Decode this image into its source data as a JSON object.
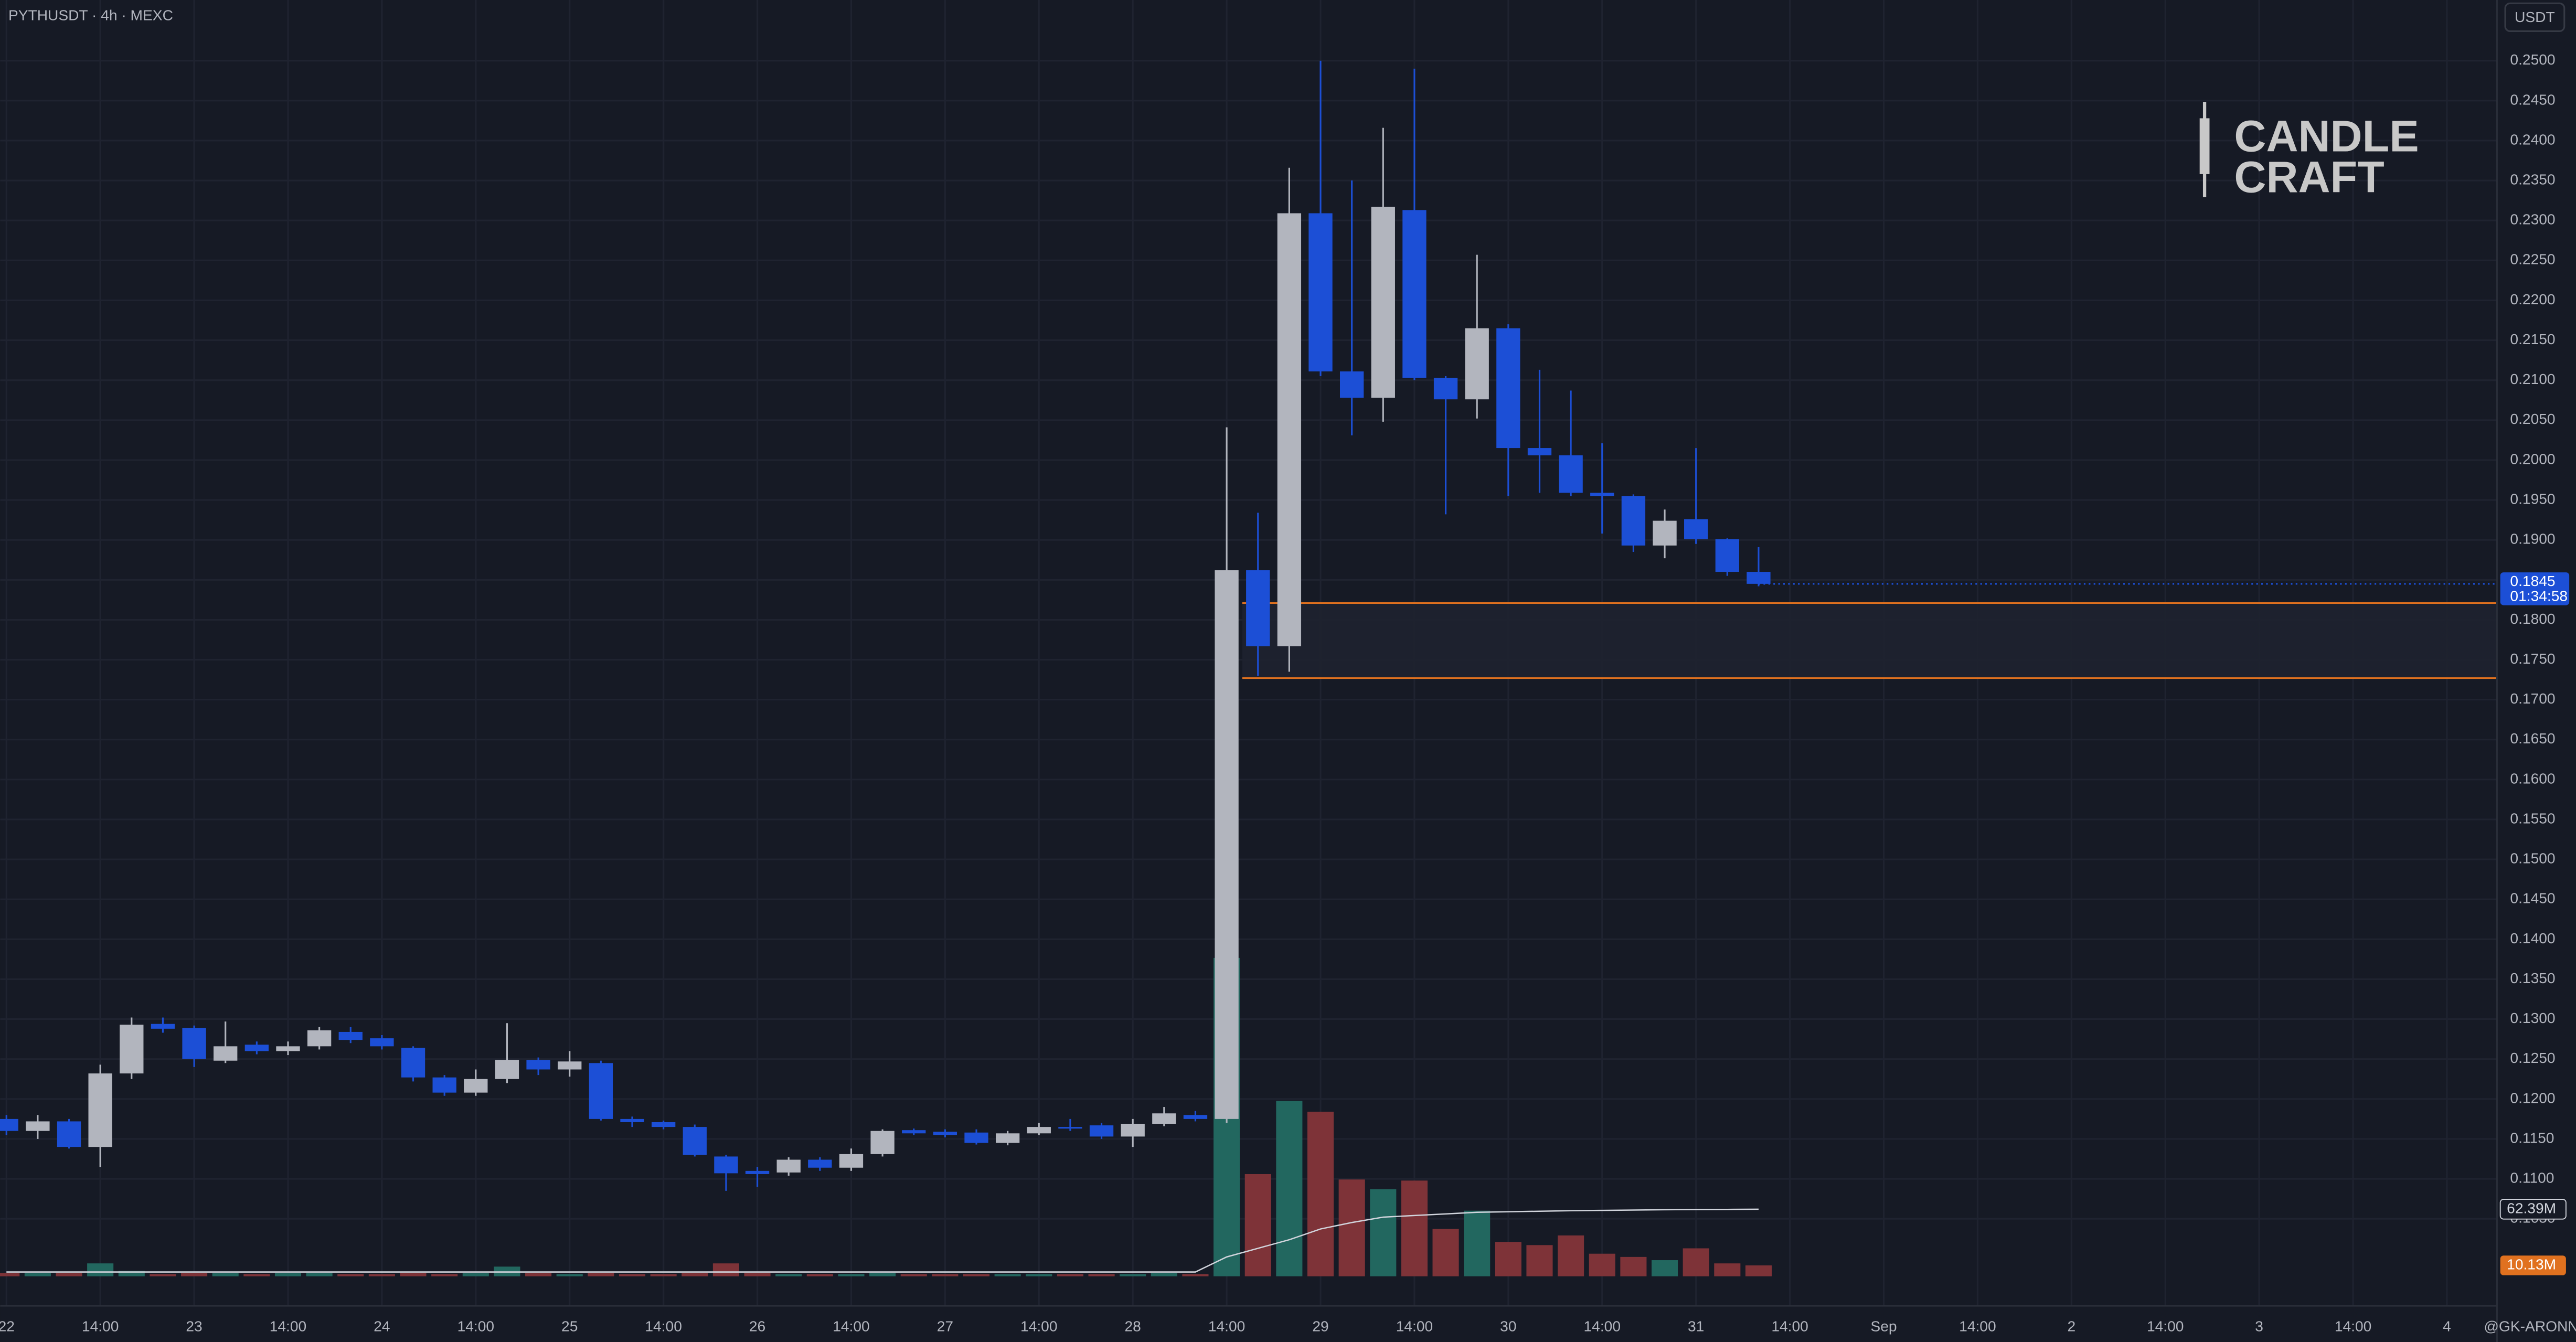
{
  "chart_data": {
    "type": "candlestick",
    "title": "PYTHUSDT · 4h · MEXC",
    "currency": "USDT",
    "x": [
      0,
      1,
      2,
      3,
      4,
      5,
      6,
      7,
      8,
      9,
      10,
      11,
      12,
      13,
      14,
      15,
      16,
      17,
      18,
      19,
      20,
      21,
      22,
      23,
      24,
      25,
      26,
      27,
      28,
      29,
      30,
      31,
      32,
      33,
      34,
      35,
      36,
      37,
      38,
      39,
      40,
      41,
      42,
      43,
      44,
      45,
      46,
      47,
      48,
      49,
      50,
      51,
      52,
      53,
      54,
      55,
      56
    ],
    "open": [
      0.1175,
      0.116,
      0.1172,
      0.114,
      0.1232,
      0.1294,
      0.1289,
      0.1248,
      0.1268,
      0.126,
      0.1266,
      0.1284,
      0.1276,
      0.1264,
      0.1227,
      0.1208,
      0.1225,
      0.1249,
      0.1237,
      0.1245,
      0.1175,
      0.1171,
      0.1165,
      0.1128,
      0.111,
      0.1108,
      0.1124,
      0.1114,
      0.1131,
      0.1161,
      0.1159,
      0.1158,
      0.1145,
      0.1157,
      0.1165,
      0.1167,
      0.1153,
      0.1169,
      0.118,
      0.1175,
      0.1862,
      0.1767,
      0.2309,
      0.2111,
      0.2078,
      0.2313,
      0.2103,
      0.2076,
      0.2165,
      0.2015,
      0.2006,
      0.1959,
      0.1955,
      0.1893,
      0.1926,
      0.1901,
      0.186
    ],
    "high": [
      0.118,
      0.118,
      0.1175,
      0.1243,
      0.1302,
      0.1302,
      0.1292,
      0.1297,
      0.1272,
      0.1272,
      0.129,
      0.129,
      0.128,
      0.1266,
      0.123,
      0.1237,
      0.1295,
      0.1252,
      0.126,
      0.1248,
      0.1178,
      0.1173,
      0.1168,
      0.113,
      0.1115,
      0.1127,
      0.1127,
      0.1138,
      0.1162,
      0.1163,
      0.1162,
      0.1162,
      0.116,
      0.117,
      0.1175,
      0.117,
      0.1175,
      0.119,
      0.1185,
      0.2041,
      0.1934,
      0.2366,
      0.25,
      0.235,
      0.2416,
      0.249,
      0.2105,
      0.2257,
      0.217,
      0.2113,
      0.2087,
      0.2021,
      0.1957,
      0.1938,
      0.2015,
      0.1902,
      0.1891
    ],
    "low": [
      0.1155,
      0.115,
      0.1138,
      0.1115,
      0.1225,
      0.1283,
      0.124,
      0.1245,
      0.1256,
      0.1255,
      0.1262,
      0.127,
      0.1262,
      0.1222,
      0.1204,
      0.1204,
      0.122,
      0.123,
      0.1228,
      0.1173,
      0.1165,
      0.1162,
      0.1128,
      0.1085,
      0.109,
      0.1104,
      0.111,
      0.111,
      0.1128,
      0.1155,
      0.1152,
      0.1143,
      0.1142,
      0.1155,
      0.116,
      0.115,
      0.114,
      0.1166,
      0.1172,
      0.117,
      0.173,
      0.1735,
      0.2105,
      0.2031,
      0.2048,
      0.21,
      0.1932,
      0.2052,
      0.1955,
      0.1959,
      0.1955,
      0.1908,
      0.1885,
      0.1877,
      0.1895,
      0.1855,
      0.1842
    ],
    "close": [
      0.116,
      0.1172,
      0.114,
      0.1232,
      0.1293,
      0.1288,
      0.125,
      0.1266,
      0.126,
      0.1266,
      0.1286,
      0.1274,
      0.1266,
      0.1227,
      0.1208,
      0.1225,
      0.1249,
      0.1237,
      0.1247,
      0.1175,
      0.1171,
      0.1165,
      0.113,
      0.1107,
      0.1106,
      0.1124,
      0.1114,
      0.1131,
      0.116,
      0.1157,
      0.1155,
      0.1145,
      0.1157,
      0.1165,
      0.1163,
      0.1153,
      0.1169,
      0.1182,
      0.1175,
      0.1862,
      0.1767,
      0.2309,
      0.2111,
      0.2078,
      0.2317,
      0.2103,
      0.2076,
      0.2165,
      0.2015,
      0.2006,
      0.1959,
      0.1955,
      0.1893,
      0.1924,
      0.1901,
      0.186,
      0.1845
    ],
    "up_color": "#b2b5be",
    "down_color": "#1c4fd6",
    "ylim": [
      0.0941,
      0.2576
    ],
    "yticks": [
      {
        "value": 0.25,
        "label": "0.2500"
      },
      {
        "value": 0.245,
        "label": "0.2450"
      },
      {
        "value": 0.24,
        "label": "0.2400"
      },
      {
        "value": 0.235,
        "label": "0.2350"
      },
      {
        "value": 0.23,
        "label": "0.2300"
      },
      {
        "value": 0.225,
        "label": "0.2250"
      },
      {
        "value": 0.22,
        "label": "0.2200"
      },
      {
        "value": 0.215,
        "label": "0.2150"
      },
      {
        "value": 0.21,
        "label": "0.2100"
      },
      {
        "value": 0.205,
        "label": "0.2050"
      },
      {
        "value": 0.2,
        "label": "0.2000"
      },
      {
        "value": 0.195,
        "label": "0.1950"
      },
      {
        "value": 0.19,
        "label": "0.1900"
      },
      {
        "value": 0.185,
        "label": "0.1850"
      },
      {
        "value": 0.18,
        "label": "0.1800"
      },
      {
        "value": 0.175,
        "label": "0.1750"
      },
      {
        "value": 0.17,
        "label": "0.1700"
      },
      {
        "value": 0.165,
        "label": "0.1650"
      },
      {
        "value": 0.16,
        "label": "0.1600"
      },
      {
        "value": 0.155,
        "label": "0.1550"
      },
      {
        "value": 0.15,
        "label": "0.1500"
      },
      {
        "value": 0.145,
        "label": "0.1450"
      },
      {
        "value": 0.14,
        "label": "0.1400"
      },
      {
        "value": 0.135,
        "label": "0.1350"
      },
      {
        "value": 0.13,
        "label": "0.1300"
      },
      {
        "value": 0.125,
        "label": "0.1250"
      },
      {
        "value": 0.12,
        "label": "0.1200"
      },
      {
        "value": 0.115,
        "label": "0.1150"
      },
      {
        "value": 0.11,
        "label": "0.1100"
      },
      {
        "value": 0.105,
        "label": "0.1050"
      }
    ],
    "xlim": [
      -0.2,
      79.6
    ],
    "xticks": [
      {
        "value": 0,
        "label": "22"
      },
      {
        "value": 3,
        "label": "14:00"
      },
      {
        "value": 6,
        "label": "23"
      },
      {
        "value": 9,
        "label": "14:00"
      },
      {
        "value": 12,
        "label": "24"
      },
      {
        "value": 15,
        "label": "14:00"
      },
      {
        "value": 18,
        "label": "25"
      },
      {
        "value": 21,
        "label": "14:00"
      },
      {
        "value": 24,
        "label": "26"
      },
      {
        "value": 27,
        "label": "14:00"
      },
      {
        "value": 30,
        "label": "27"
      },
      {
        "value": 33,
        "label": "14:00"
      },
      {
        "value": 36,
        "label": "28"
      },
      {
        "value": 39,
        "label": "14:00"
      },
      {
        "value": 42,
        "label": "29"
      },
      {
        "value": 45,
        "label": "14:00"
      },
      {
        "value": 48,
        "label": "30"
      },
      {
        "value": 51,
        "label": "14:00"
      },
      {
        "value": 54,
        "label": "31"
      },
      {
        "value": 57,
        "label": "14:00"
      },
      {
        "value": 60,
        "label": "Sep"
      },
      {
        "value": 63,
        "label": "14:00"
      },
      {
        "value": 66,
        "label": "2"
      },
      {
        "value": 69,
        "label": "14:00"
      },
      {
        "value": 72,
        "label": "3"
      },
      {
        "value": 75,
        "label": "14:00"
      },
      {
        "value": 78,
        "label": "4"
      }
    ],
    "grid": true,
    "countdown": "01:34:58",
    "zone": {
      "top": 0.1821,
      "bottom": 0.1727,
      "color": "#e0711f"
    },
    "volume": {
      "values": [
        3,
        3,
        3,
        12,
        5,
        2,
        3,
        3,
        2,
        3,
        3,
        2,
        2,
        3,
        2,
        3,
        9,
        3,
        2,
        3,
        2,
        2,
        3,
        12,
        3,
        2,
        2,
        2,
        3,
        2,
        2,
        2,
        2,
        2,
        2,
        2,
        2,
        3,
        2,
        296,
        95,
        163,
        153,
        90,
        81,
        89,
        44,
        61,
        32,
        29,
        38,
        21,
        18,
        15,
        26,
        12,
        10.13
      ],
      "last_label": "10.13M",
      "ylim": [
        0,
        310
      ],
      "up_color": "#22675f",
      "down_color": "#7e3338"
    },
    "volume_ma": {
      "values": [
        4,
        4,
        4,
        4,
        4,
        4,
        4,
        4,
        4,
        4,
        4,
        4,
        4,
        4,
        4,
        4,
        4,
        4,
        4,
        4,
        4,
        4,
        4,
        4,
        4,
        4,
        4,
        4,
        4,
        4,
        4,
        4,
        4,
        4,
        4,
        4,
        4,
        4,
        4,
        18,
        26,
        34,
        44,
        50,
        55,
        56.5,
        58,
        59.5,
        60,
        60.5,
        61,
        61.3,
        61.6,
        61.9,
        62.1,
        62.2,
        62.39
      ],
      "last_label": "62.39M",
      "color": "#d1d4dc"
    },
    "watermark": [
      "CANDLE",
      "CRAFT"
    ],
    "author": "@GK-ARONNO"
  }
}
